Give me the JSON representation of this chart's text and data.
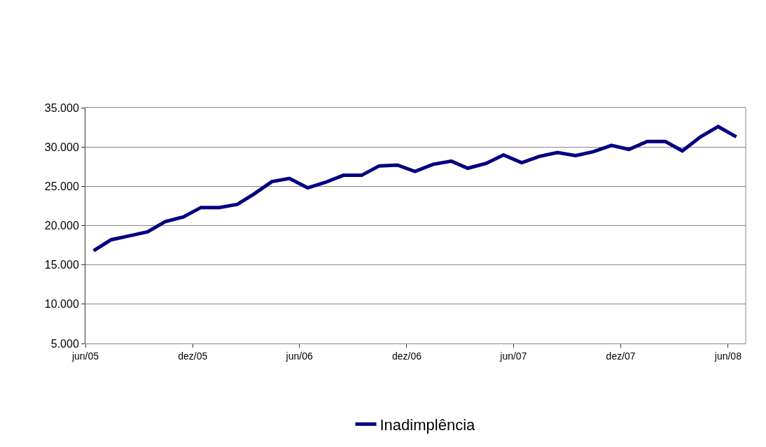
{
  "chart_data": {
    "type": "line",
    "x": [
      "2005-06-15",
      "2005-07-15",
      "2005-08-15",
      "2005-09-15",
      "2005-10-15",
      "2005-11-15",
      "2005-12-15",
      "2006-01-15",
      "2006-02-15",
      "2006-03-15",
      "2006-04-15",
      "2006-05-15",
      "2006-06-15",
      "2006-07-15",
      "2006-08-15",
      "2006-09-15",
      "2006-10-15",
      "2006-11-15",
      "2006-12-15",
      "2007-01-15",
      "2007-02-15",
      "2007-03-15",
      "2007-04-15",
      "2007-05-15",
      "2007-06-15",
      "2007-07-15",
      "2007-08-15",
      "2007-09-15",
      "2007-10-15",
      "2007-11-15",
      "2007-12-15",
      "2008-01-15",
      "2008-02-15",
      "2008-03-15",
      "2008-04-15",
      "2008-05-15",
      "2008-06-15"
    ],
    "series": [
      {
        "name": "Inadimplência",
        "color": "#000080",
        "values": [
          16800,
          18200,
          18700,
          19200,
          20500,
          21100,
          22300,
          22300,
          22700,
          24000,
          25600,
          26000,
          24800,
          25500,
          26400,
          26400,
          27600,
          27700,
          26900,
          27800,
          28200,
          27300,
          27900,
          29000,
          28000,
          28800,
          29300,
          28900,
          29400,
          30200,
          29700,
          30700,
          30700,
          29500,
          31300,
          32600,
          31300
        ]
      }
    ],
    "xlim": [
      "2005-06-01",
      "2008-07-01"
    ],
    "xticks": [
      {
        "value": "2005-06-01",
        "label": "jun/05"
      },
      {
        "value": "2005-12-01",
        "label": "dez/05"
      },
      {
        "value": "2006-06-01",
        "label": "jun/06"
      },
      {
        "value": "2006-12-01",
        "label": "dez/06"
      },
      {
        "value": "2007-06-01",
        "label": "jun/07"
      },
      {
        "value": "2007-12-01",
        "label": "dez/07"
      },
      {
        "value": "2008-06-01",
        "label": "jun/08"
      }
    ],
    "ylim": [
      5000,
      35000
    ],
    "yticks": [
      {
        "value": 5000,
        "label": "5.000"
      },
      {
        "value": 10000,
        "label": "10.000"
      },
      {
        "value": 15000,
        "label": "15.000"
      },
      {
        "value": 20000,
        "label": "20.000"
      },
      {
        "value": 25000,
        "label": "25.000"
      },
      {
        "value": 30000,
        "label": "30.000"
      },
      {
        "value": 35000,
        "label": "35.000"
      }
    ],
    "grid": "y",
    "legend": "bottom",
    "marker": "none",
    "line_style": "solid"
  }
}
